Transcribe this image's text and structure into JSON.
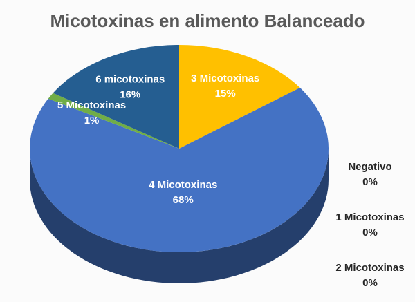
{
  "chart_data": {
    "type": "pie",
    "title": "Micotoxinas en alimento Balanceado",
    "categories": [
      "Negativo",
      "1 Micotoxinas",
      "2 Micotoxinas",
      "3 Micotoxinas",
      "4 Micotoxinas",
      "5 Micotoxinas",
      "6 micotoxinas"
    ],
    "values": [
      0,
      0,
      0,
      15,
      68,
      1,
      16
    ],
    "value_labels": [
      "0%",
      "0%",
      "0%",
      "15%",
      "68%",
      "1%",
      "16%"
    ],
    "colors": [
      "#5b9bd5",
      "#ed7d31",
      "#a5a5a5",
      "#ffc000",
      "#4472c4",
      "#70ad47",
      "#255e91"
    ]
  }
}
